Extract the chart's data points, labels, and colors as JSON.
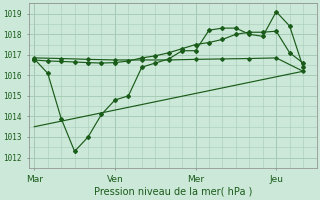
{
  "bg_color": "#cce8d8",
  "grid_color": "#a8ccb8",
  "line_color": "#1a5c1a",
  "xlabel": "Pression niveau de la mer( hPa )",
  "ylim": [
    1011.5,
    1019.5
  ],
  "yticks": [
    1012,
    1013,
    1014,
    1015,
    1016,
    1017,
    1018,
    1019
  ],
  "xtick_labels": [
    "Mar",
    "Ven",
    "Mer",
    "Jeu"
  ],
  "xtick_positions": [
    0,
    3,
    6,
    9
  ],
  "vline_positions": [
    0,
    3,
    6,
    9
  ],
  "xlim": [
    -0.2,
    10.5
  ],
  "series1_volatile": {
    "x": [
      0,
      0.5,
      1.0,
      1.5,
      2.0,
      2.5,
      3.0,
      3.5,
      4.0,
      4.5,
      5.0,
      5.5,
      6.0,
      6.5,
      7.0,
      7.5,
      8.0,
      8.5,
      9.0,
      9.5,
      10.0
    ],
    "y": [
      1016.8,
      1016.1,
      1013.9,
      1012.3,
      1013.0,
      1014.1,
      1014.8,
      1015.0,
      1016.4,
      1016.6,
      1016.8,
      1017.2,
      1017.2,
      1018.2,
      1018.3,
      1018.3,
      1018.0,
      1017.9,
      1019.1,
      1018.4,
      1016.4
    ]
  },
  "series2_smooth": {
    "x": [
      0,
      0.5,
      1.0,
      1.5,
      2.0,
      2.5,
      3.0,
      3.5,
      4.0,
      4.5,
      5.0,
      5.5,
      6.0,
      6.5,
      7.0,
      7.5,
      8.0,
      8.5,
      9.0,
      9.5,
      10.0
    ],
    "y": [
      1016.75,
      1016.7,
      1016.68,
      1016.65,
      1016.62,
      1016.6,
      1016.62,
      1016.7,
      1016.85,
      1016.95,
      1017.1,
      1017.3,
      1017.5,
      1017.6,
      1017.75,
      1018.0,
      1018.1,
      1018.1,
      1018.15,
      1017.1,
      1016.6
    ]
  },
  "series3_flat": {
    "x": [
      0,
      1,
      2,
      3,
      4,
      5,
      6,
      7,
      8,
      9,
      10
    ],
    "y": [
      1016.85,
      1016.82,
      1016.78,
      1016.75,
      1016.75,
      1016.75,
      1016.78,
      1016.8,
      1016.82,
      1016.85,
      1016.2
    ]
  },
  "trend_line": {
    "x": [
      0,
      10.0
    ],
    "y": [
      1013.5,
      1016.2
    ]
  }
}
